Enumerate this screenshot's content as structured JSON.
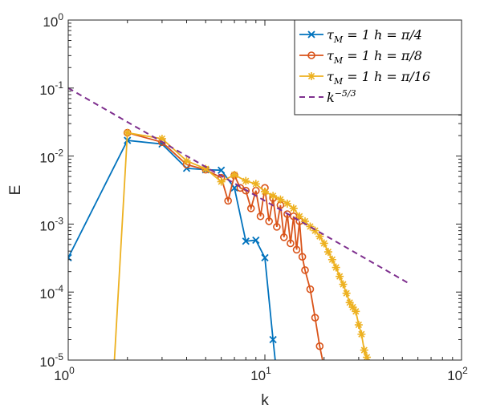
{
  "chart_data": {
    "type": "line",
    "title": "",
    "xlabel": "k",
    "ylabel": "E",
    "xscale": "log",
    "yscale": "log",
    "xlim": [
      1,
      100
    ],
    "ylim": [
      1e-05,
      1
    ],
    "grid": false,
    "legend_position": "top-right",
    "x_ticks": [
      {
        "base": "10",
        "exp": "0",
        "value": 1
      },
      {
        "base": "10",
        "exp": "1",
        "value": 10
      },
      {
        "base": "10",
        "exp": "2",
        "value": 100
      }
    ],
    "y_ticks": [
      {
        "base": "10",
        "exp": "0",
        "value": 1
      },
      {
        "base": "10",
        "exp": "-1",
        "value": 0.1
      },
      {
        "base": "10",
        "exp": "-2",
        "value": 0.01
      },
      {
        "base": "10",
        "exp": "-3",
        "value": 0.001
      },
      {
        "base": "10",
        "exp": "-4",
        "value": 0.0001
      },
      {
        "base": "10",
        "exp": "-5",
        "value": 1e-05
      }
    ],
    "series": [
      {
        "name": "τM = 1 h = π/4",
        "legend": {
          "pre": "τ",
          "sub": "M",
          "post": " = 1  h = π/4"
        },
        "color": "#0072BD",
        "marker": "x",
        "points": [
          [
            1,
            0.00032
          ],
          [
            2,
            0.017
          ],
          [
            3,
            0.015
          ],
          [
            4,
            0.0066
          ],
          [
            5,
            0.0063
          ],
          [
            6,
            0.0062
          ],
          [
            7,
            0.0034
          ],
          [
            8,
            0.00056
          ],
          [
            9,
            0.00058
          ],
          [
            10,
            0.00032
          ],
          [
            11,
            2e-05
          ],
          [
            11.5,
            6e-06
          ]
        ]
      },
      {
        "name": "τM = 1 h = π/8",
        "legend": {
          "pre": "τ",
          "sub": "M",
          "post": " = 1  h = π/8"
        },
        "color": "#D95319",
        "marker": "o",
        "points": [
          [
            2,
            0.022
          ],
          [
            3,
            0.016
          ],
          [
            4,
            0.0075
          ],
          [
            5,
            0.0063
          ],
          [
            6,
            0.0048
          ],
          [
            6.5,
            0.0022
          ],
          [
            7,
            0.0052
          ],
          [
            7.5,
            0.0034
          ],
          [
            8,
            0.0031
          ],
          [
            8.5,
            0.0017
          ],
          [
            9,
            0.0031
          ],
          [
            9.5,
            0.0013
          ],
          [
            10,
            0.0034
          ],
          [
            10.5,
            0.0011
          ],
          [
            11,
            0.0024
          ],
          [
            11.5,
            0.00091
          ],
          [
            12,
            0.0019
          ],
          [
            12.5,
            0.00064
          ],
          [
            13,
            0.0014
          ],
          [
            13.5,
            0.00052
          ],
          [
            14,
            0.0013
          ],
          [
            14.5,
            0.00042
          ],
          [
            15,
            0.0011
          ],
          [
            15.5,
            0.00033
          ],
          [
            16,
            0.00021
          ],
          [
            17,
            0.00011
          ],
          [
            18,
            4.2e-05
          ],
          [
            19,
            1.6e-05
          ],
          [
            20,
            7.8e-06
          ]
        ]
      },
      {
        "name": "τM = 1 h = π/16",
        "legend": {
          "pre": "τ",
          "sub": "M",
          "post": " = 1  h = π/16"
        },
        "color": "#EDB120",
        "marker": "*",
        "points": [
          [
            1.7,
            6e-06
          ],
          [
            2,
            0.022
          ],
          [
            3,
            0.018
          ],
          [
            4,
            0.0085
          ],
          [
            5,
            0.0065
          ],
          [
            6,
            0.0042
          ],
          [
            7,
            0.0053
          ],
          [
            8,
            0.0043
          ],
          [
            9,
            0.0039
          ],
          [
            10,
            0.003
          ],
          [
            11,
            0.0026
          ],
          [
            12,
            0.0023
          ],
          [
            13,
            0.002
          ],
          [
            14,
            0.0017
          ],
          [
            15,
            0.0013
          ],
          [
            16,
            0.0011
          ],
          [
            17,
            0.00092
          ],
          [
            18,
            0.0008
          ],
          [
            19,
            0.00066
          ],
          [
            20,
            0.00052
          ],
          [
            21,
            0.00039
          ],
          [
            22,
            0.0003
          ],
          [
            23,
            0.00023
          ],
          [
            24,
            0.00017
          ],
          [
            25,
            0.00013
          ],
          [
            26,
            9.6e-05
          ],
          [
            27,
            7e-05
          ],
          [
            28,
            6e-05
          ],
          [
            29,
            5.2e-05
          ],
          [
            30,
            3.3e-05
          ],
          [
            31,
            2.4e-05
          ],
          [
            32,
            1.4e-05
          ],
          [
            33,
            1.1e-05
          ],
          [
            34,
            6.5e-06
          ]
        ]
      },
      {
        "name": "k−5/3",
        "legend": {
          "pre": "k",
          "sup": "−5/3",
          "post": ""
        },
        "color": "#7E2F8E",
        "marker": "none",
        "dashed": true,
        "points": [
          [
            1,
            0.1
          ],
          [
            55,
            0.00013
          ]
        ]
      }
    ]
  }
}
